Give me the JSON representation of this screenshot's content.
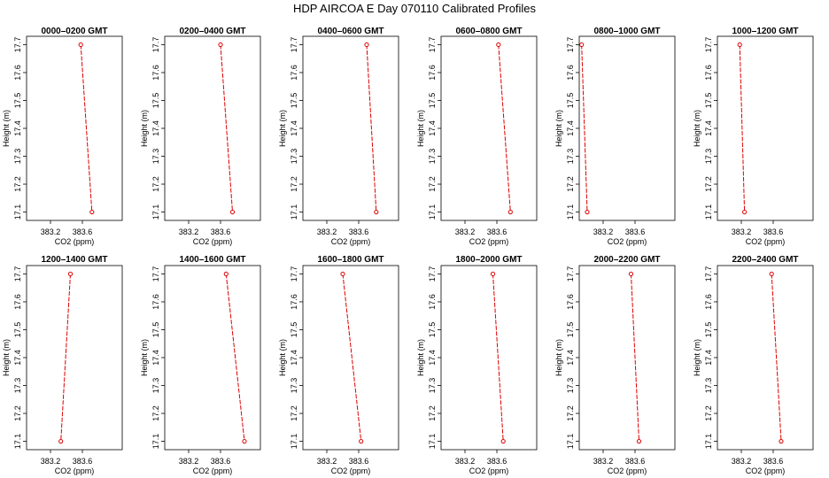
{
  "title": "HDP  AIRCOA E  Day 070110  Calibrated Profiles",
  "colors": {
    "series": "#dd0000",
    "axis": "#000000"
  },
  "chart_data": [
    {
      "type": "line",
      "title": "0000–0200 GMT",
      "xlabel": "CO2 (ppm)",
      "ylabel": "Height (m)",
      "xlim": [
        382.9,
        384.1
      ],
      "ylim": [
        17.07,
        17.73
      ],
      "xticks": [
        "383.2",
        "383.6"
      ],
      "yticks": [
        "17.1",
        "17.2",
        "17.3",
        "17.4",
        "17.5",
        "17.6",
        "17.7"
      ],
      "series": [
        {
          "x": [
            383.58,
            383.72
          ],
          "y": [
            17.7,
            17.1
          ]
        }
      ]
    },
    {
      "type": "line",
      "title": "0200–0400 GMT",
      "xlabel": "CO2 (ppm)",
      "ylabel": "Height (m)",
      "xlim": [
        382.9,
        384.1
      ],
      "ylim": [
        17.07,
        17.73
      ],
      "xticks": [
        "383.2",
        "383.6"
      ],
      "yticks": [
        "17.1",
        "17.2",
        "17.3",
        "17.4",
        "17.5",
        "17.6",
        "17.7"
      ],
      "series": [
        {
          "x": [
            383.6,
            383.75
          ],
          "y": [
            17.7,
            17.1
          ]
        }
      ]
    },
    {
      "type": "line",
      "title": "0400–0600 GMT",
      "xlabel": "CO2 (ppm)",
      "ylabel": "Height (m)",
      "xlim": [
        382.9,
        384.1
      ],
      "ylim": [
        17.07,
        17.73
      ],
      "xticks": [
        "383.2",
        "383.6"
      ],
      "yticks": [
        "17.1",
        "17.2",
        "17.3",
        "17.4",
        "17.5",
        "17.6",
        "17.7"
      ],
      "series": [
        {
          "x": [
            383.7,
            383.82
          ],
          "y": [
            17.7,
            17.1
          ]
        }
      ]
    },
    {
      "type": "line",
      "title": "0600–0800 GMT",
      "xlabel": "CO2 (ppm)",
      "ylabel": "Height (m)",
      "xlim": [
        382.9,
        384.1
      ],
      "ylim": [
        17.07,
        17.73
      ],
      "xticks": [
        "383.2",
        "383.6"
      ],
      "yticks": [
        "17.1",
        "17.2",
        "17.3",
        "17.4",
        "17.5",
        "17.6",
        "17.7"
      ],
      "series": [
        {
          "x": [
            383.62,
            383.77
          ],
          "y": [
            17.7,
            17.1
          ]
        }
      ]
    },
    {
      "type": "line",
      "title": "0800–1000 GMT",
      "xlabel": "CO2 (ppm)",
      "ylabel": "Height (m)",
      "xlim": [
        382.9,
        384.1
      ],
      "ylim": [
        17.07,
        17.73
      ],
      "xticks": [
        "383.2",
        "383.6"
      ],
      "yticks": [
        "17.1",
        "17.2",
        "17.3",
        "17.4",
        "17.5",
        "17.6",
        "17.7"
      ],
      "series": [
        {
          "x": [
            382.93,
            383.0
          ],
          "y": [
            17.7,
            17.1
          ]
        }
      ]
    },
    {
      "type": "line",
      "title": "1000–1200 GMT",
      "xlabel": "CO2 (ppm)",
      "ylabel": "Height (m)",
      "xlim": [
        382.9,
        384.1
      ],
      "ylim": [
        17.07,
        17.73
      ],
      "xticks": [
        "383.2",
        "383.6"
      ],
      "yticks": [
        "17.1",
        "17.2",
        "17.3",
        "17.4",
        "17.5",
        "17.6",
        "17.7"
      ],
      "series": [
        {
          "x": [
            383.18,
            383.24
          ],
          "y": [
            17.7,
            17.1
          ]
        }
      ]
    },
    {
      "type": "line",
      "title": "1200–1400 GMT",
      "xlabel": "CO2 (ppm)",
      "ylabel": "Height (m)",
      "xlim": [
        382.9,
        384.1
      ],
      "ylim": [
        17.07,
        17.73
      ],
      "xticks": [
        "383.2",
        "383.6"
      ],
      "yticks": [
        "17.1",
        "17.2",
        "17.3",
        "17.4",
        "17.5",
        "17.6",
        "17.7"
      ],
      "series": [
        {
          "x": [
            383.45,
            383.33
          ],
          "y": [
            17.7,
            17.1
          ]
        }
      ]
    },
    {
      "type": "line",
      "title": "1400–1600 GMT",
      "xlabel": "CO2 (ppm)",
      "ylabel": "Height (m)",
      "xlim": [
        382.9,
        384.1
      ],
      "ylim": [
        17.07,
        17.73
      ],
      "xticks": [
        "383.2",
        "383.6"
      ],
      "yticks": [
        "17.1",
        "17.2",
        "17.3",
        "17.4",
        "17.5",
        "17.6",
        "17.7"
      ],
      "series": [
        {
          "x": [
            383.67,
            383.9
          ],
          "y": [
            17.7,
            17.1
          ]
        }
      ]
    },
    {
      "type": "line",
      "title": "1600–1800 GMT",
      "xlabel": "CO2 (ppm)",
      "ylabel": "Height (m)",
      "xlim": [
        382.9,
        384.1
      ],
      "ylim": [
        17.07,
        17.73
      ],
      "xticks": [
        "383.2",
        "383.6"
      ],
      "yticks": [
        "17.1",
        "17.2",
        "17.3",
        "17.4",
        "17.5",
        "17.6",
        "17.7"
      ],
      "series": [
        {
          "x": [
            383.4,
            383.63
          ],
          "y": [
            17.7,
            17.1
          ]
        }
      ]
    },
    {
      "type": "line",
      "title": "1800–2000 GMT",
      "xlabel": "CO2 (ppm)",
      "ylabel": "Height (m)",
      "xlim": [
        382.9,
        384.1
      ],
      "ylim": [
        17.07,
        17.73
      ],
      "xticks": [
        "383.2",
        "383.6"
      ],
      "yticks": [
        "17.1",
        "17.2",
        "17.3",
        "17.4",
        "17.5",
        "17.6",
        "17.7"
      ],
      "series": [
        {
          "x": [
            383.55,
            383.68
          ],
          "y": [
            17.7,
            17.1
          ]
        }
      ]
    },
    {
      "type": "line",
      "title": "2000–2200 GMT",
      "xlabel": "CO2 (ppm)",
      "ylabel": "Height (m)",
      "xlim": [
        382.9,
        384.1
      ],
      "ylim": [
        17.07,
        17.73
      ],
      "xticks": [
        "383.2",
        "383.6"
      ],
      "yticks": [
        "17.1",
        "17.2",
        "17.3",
        "17.4",
        "17.5",
        "17.6",
        "17.7"
      ],
      "series": [
        {
          "x": [
            383.55,
            383.65
          ],
          "y": [
            17.7,
            17.1
          ]
        }
      ]
    },
    {
      "type": "line",
      "title": "2200–2400 GMT",
      "xlabel": "CO2 (ppm)",
      "ylabel": "Height (m)",
      "xlim": [
        382.9,
        384.1
      ],
      "ylim": [
        17.07,
        17.73
      ],
      "xticks": [
        "383.2",
        "383.6"
      ],
      "yticks": [
        "17.1",
        "17.2",
        "17.3",
        "17.4",
        "17.5",
        "17.6",
        "17.7"
      ],
      "series": [
        {
          "x": [
            383.58,
            383.7
          ],
          "y": [
            17.7,
            17.1
          ]
        }
      ]
    }
  ]
}
